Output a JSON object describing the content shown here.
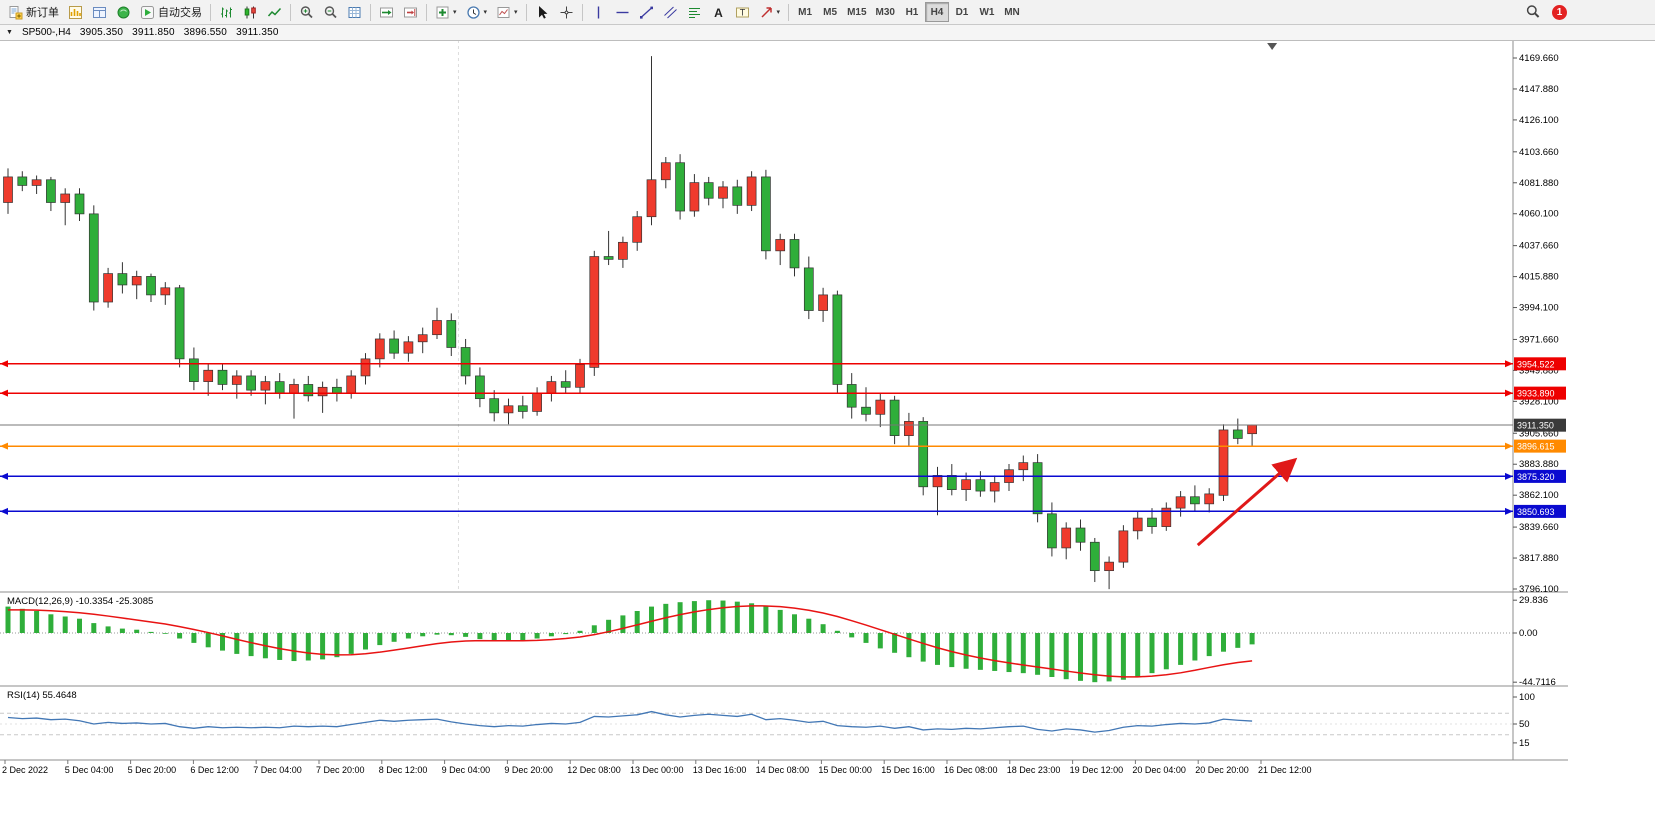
{
  "toolbar": {
    "new_order_label": "新订单",
    "auto_trading_label": "自动交易",
    "timeframes": [
      "M1",
      "M5",
      "M15",
      "M30",
      "H1",
      "H4",
      "D1",
      "W1",
      "MN"
    ],
    "active_timeframe": "H4",
    "notification_badge": "1"
  },
  "chart_header": {
    "collapse_icon": "▼",
    "symbol_period": "SP500-,H4",
    "open": "3905.350",
    "high": "3911.850",
    "low": "3896.550",
    "close": "3911.350"
  },
  "chart_data": {
    "type": "candlestick",
    "symbol": "SP500-",
    "period": "H4",
    "price_axis_ticks": [
      "4169.660",
      "4147.880",
      "4126.100",
      "4103.660",
      "4081.880",
      "4060.100",
      "4037.660",
      "4015.880",
      "3994.100",
      "3971.660",
      "3949.880",
      "3928.100",
      "3905.660",
      "3883.880",
      "3862.100",
      "3839.660",
      "3817.880",
      "3796.100"
    ],
    "x_axis_labels": [
      "2 Dec 2022",
      "5 Dec 04:00",
      "5 Dec 20:00",
      "6 Dec 12:00",
      "7 Dec 04:00",
      "7 Dec 20:00",
      "8 Dec 12:00",
      "9 Dec 04:00",
      "9 Dec 20:00",
      "12 Dec 08:00",
      "13 Dec 00:00",
      "13 Dec 16:00",
      "14 Dec 08:00",
      "15 Dec 00:00",
      "15 Dec 16:00",
      "16 Dec 08:00",
      "18 Dec 23:00",
      "19 Dec 12:00",
      "20 Dec 04:00",
      "20 Dec 20:00",
      "21 Dec 12:00"
    ],
    "candles_ohlc": [
      [
        4068,
        4092,
        4060,
        4086
      ],
      [
        4086,
        4090,
        4076,
        4080
      ],
      [
        4080,
        4087,
        4074,
        4084
      ],
      [
        4084,
        4086,
        4062,
        4068
      ],
      [
        4068,
        4078,
        4052,
        4074
      ],
      [
        4074,
        4078,
        4055,
        4060
      ],
      [
        4060,
        4066,
        3992,
        3998
      ],
      [
        3998,
        4022,
        3994,
        4018
      ],
      [
        4018,
        4026,
        4004,
        4010
      ],
      [
        4010,
        4020,
        4000,
        4016
      ],
      [
        4016,
        4018,
        3998,
        4003
      ],
      [
        4003,
        4012,
        3996,
        4008
      ],
      [
        4008,
        4010,
        3952,
        3958
      ],
      [
        3958,
        3966,
        3936,
        3942
      ],
      [
        3942,
        3955,
        3932,
        3950
      ],
      [
        3950,
        3954,
        3936,
        3940
      ],
      [
        3940,
        3950,
        3930,
        3946
      ],
      [
        3946,
        3950,
        3932,
        3936
      ],
      [
        3936,
        3946,
        3926,
        3942
      ],
      [
        3942,
        3948,
        3930,
        3934
      ],
      [
        3934,
        3944,
        3916,
        3940
      ],
      [
        3940,
        3946,
        3928,
        3932
      ],
      [
        3932,
        3942,
        3920,
        3938
      ],
      [
        3938,
        3944,
        3928,
        3934
      ],
      [
        3934,
        3950,
        3930,
        3946
      ],
      [
        3946,
        3962,
        3940,
        3958
      ],
      [
        3958,
        3976,
        3952,
        3972
      ],
      [
        3972,
        3978,
        3958,
        3962
      ],
      [
        3962,
        3974,
        3956,
        3970
      ],
      [
        3970,
        3980,
        3962,
        3975
      ],
      [
        3975,
        3994,
        3972,
        3985
      ],
      [
        3985,
        3990,
        3960,
        3966
      ],
      [
        3966,
        3972,
        3940,
        3946
      ],
      [
        3946,
        3952,
        3924,
        3930
      ],
      [
        3930,
        3936,
        3914,
        3920
      ],
      [
        3920,
        3930,
        3912,
        3925
      ],
      [
        3925,
        3932,
        3916,
        3921
      ],
      [
        3921,
        3938,
        3918,
        3934
      ],
      [
        3934,
        3946,
        3928,
        3942
      ],
      [
        3942,
        3950,
        3934,
        3938
      ],
      [
        3938,
        3958,
        3934,
        3954
      ],
      [
        3952,
        4034,
        3946,
        4030
      ],
      [
        4030,
        4048,
        4024,
        4028
      ],
      [
        4028,
        4044,
        4022,
        4040
      ],
      [
        4040,
        4062,
        4034,
        4058
      ],
      [
        4058,
        4171,
        4052,
        4084
      ],
      [
        4084,
        4100,
        4078,
        4096
      ],
      [
        4096,
        4102,
        4056,
        4062
      ],
      [
        4062,
        4088,
        4058,
        4082
      ],
      [
        4082,
        4086,
        4066,
        4071
      ],
      [
        4071,
        4083,
        4064,
        4079
      ],
      [
        4079,
        4084,
        4060,
        4066
      ],
      [
        4066,
        4090,
        4062,
        4086
      ],
      [
        4086,
        4091,
        4028,
        4034
      ],
      [
        4034,
        4046,
        4024,
        4042
      ],
      [
        4042,
        4046,
        4016,
        4022
      ],
      [
        4022,
        4030,
        3986,
        3992
      ],
      [
        3992,
        4008,
        3984,
        4003
      ],
      [
        4003,
        4006,
        3934,
        3940
      ],
      [
        3940,
        3948,
        3916,
        3924
      ],
      [
        3924,
        3938,
        3914,
        3919
      ],
      [
        3919,
        3934,
        3910,
        3929
      ],
      [
        3929,
        3932,
        3898,
        3904
      ],
      [
        3904,
        3920,
        3896,
        3914
      ],
      [
        3914,
        3917,
        3862,
        3868
      ],
      [
        3868,
        3882,
        3848,
        3876
      ],
      [
        3876,
        3884,
        3862,
        3866
      ],
      [
        3866,
        3878,
        3858,
        3873
      ],
      [
        3873,
        3879,
        3861,
        3865
      ],
      [
        3865,
        3876,
        3857,
        3871
      ],
      [
        3871,
        3884,
        3865,
        3880
      ],
      [
        3880,
        3890,
        3872,
        3885
      ],
      [
        3885,
        3891,
        3843,
        3849
      ],
      [
        3849,
        3857,
        3819,
        3825
      ],
      [
        3825,
        3843,
        3817,
        3839
      ],
      [
        3839,
        3845,
        3823,
        3829
      ],
      [
        3829,
        3832,
        3801,
        3809
      ],
      [
        3809,
        3819,
        3796,
        3815
      ],
      [
        3815,
        3841,
        3811,
        3837
      ],
      [
        3837,
        3851,
        3831,
        3846
      ],
      [
        3846,
        3853,
        3835,
        3840
      ],
      [
        3840,
        3857,
        3837,
        3853
      ],
      [
        3853,
        3865,
        3847,
        3861
      ],
      [
        3861,
        3869,
        3851,
        3856
      ],
      [
        3856,
        3867,
        3850,
        3863
      ],
      [
        3862,
        3912,
        3858,
        3908
      ],
      [
        3908,
        3916,
        3898,
        3902
      ],
      [
        3905.35,
        3911.85,
        3896.55,
        3911.35
      ]
    ],
    "horizontal_lines": [
      {
        "price": 3954.522,
        "label": "3954.522",
        "color": "#ee0000",
        "kind": "resistance"
      },
      {
        "price": 3933.89,
        "label": "3933.890",
        "color": "#ee0000",
        "kind": "resistance"
      },
      {
        "price": 3911.35,
        "label": "3911.350",
        "color": "#444444",
        "kind": "current-price"
      },
      {
        "price": 3896.615,
        "label": "3896.615",
        "color": "#ff8a00",
        "kind": "level"
      },
      {
        "price": 3875.32,
        "label": "3875.320",
        "color": "#0a0ad0",
        "kind": "support"
      },
      {
        "price": 3850.693,
        "label": "3850.693",
        "color": "#0a0ad0",
        "kind": "support"
      }
    ],
    "trend_arrow": {
      "from_bar": 83.2,
      "from_price": 3827,
      "to_bar": 90,
      "to_price": 3887,
      "color": "#e01818"
    },
    "vertical_separator_bar": 31.5,
    "chart_shift_marker_bar": 88.4,
    "macd": {
      "label": "MACD(12,26,9) -10.3354 -25.3085",
      "axis_ticks": [
        "29.836",
        "0.00",
        "-44.7116"
      ],
      "histogram_color": "#2fae3a",
      "signal_color": "#e81313",
      "histogram": [
        24,
        22,
        20,
        17,
        15,
        13,
        9,
        6,
        4,
        3,
        1,
        0,
        -5,
        -9,
        -13,
        -16,
        -19,
        -21,
        -23,
        -24.5,
        -25.5,
        -25,
        -24,
        -22,
        -19,
        -15,
        -11,
        -8,
        -5,
        -3,
        -1.5,
        -2,
        -3.5,
        -5.5,
        -7,
        -7.5,
        -6.5,
        -5,
        -3,
        -1,
        2,
        7,
        12,
        16,
        20,
        24,
        26.5,
        28,
        29,
        29.8,
        29.5,
        28.5,
        27,
        24.5,
        21,
        17,
        13,
        8,
        2,
        -4,
        -9,
        -14,
        -18,
        -22,
        -26,
        -29,
        -31,
        -32.5,
        -33.5,
        -34.5,
        -35.5,
        -36.5,
        -38,
        -40,
        -42,
        -43.5,
        -44.7,
        -44,
        -42.5,
        -40,
        -36.5,
        -33,
        -29,
        -25,
        -21,
        -17,
        -13.5,
        -10.34
      ],
      "signal": [
        21,
        21,
        20.8,
        20.2,
        19.4,
        18.4,
        17,
        15.4,
        13.6,
        11.8,
        10,
        8.2,
        5.8,
        3.2,
        0.4,
        -2.6,
        -5.8,
        -8.8,
        -11.6,
        -14.2,
        -16.4,
        -18.2,
        -19.4,
        -19.9,
        -19.8,
        -18.9,
        -17.4,
        -15.6,
        -13.6,
        -11.6,
        -9.7,
        -8.2,
        -7.3,
        -6.9,
        -7,
        -7.1,
        -7.1,
        -6.7,
        -6,
        -5,
        -3.6,
        -1.5,
        1.2,
        4.2,
        7.4,
        10.7,
        13.9,
        16.7,
        19.2,
        21.3,
        23,
        24.1,
        24.7,
        24.6,
        24,
        22.6,
        20.7,
        18.2,
        15,
        11.2,
        7.2,
        3,
        -1.2,
        -5.4,
        -9.5,
        -13.4,
        -16.9,
        -20,
        -22.7,
        -25.1,
        -27.2,
        -29.1,
        -30.9,
        -32.7,
        -34.6,
        -36.4,
        -38,
        -39.2,
        -39.9,
        -39.9,
        -39.2,
        -38,
        -36.2,
        -33.9,
        -31.3,
        -28.9,
        -26.8,
        -25.31
      ]
    },
    "rsi": {
      "label": "RSI(14) 55.4648",
      "axis_ticks": [
        "100",
        "50",
        "15"
      ],
      "levels": [
        70,
        30
      ],
      "line_color": "#4277b5",
      "values": [
        62,
        60,
        61,
        58,
        59,
        56,
        50,
        53,
        51,
        52,
        50,
        51,
        45,
        42,
        45,
        43,
        44,
        43,
        44,
        43,
        46,
        45,
        46,
        45,
        49,
        53,
        57,
        55,
        57,
        58,
        59,
        54,
        50,
        47,
        45,
        47,
        46,
        49,
        51,
        50,
        53,
        64,
        63,
        65,
        67,
        73,
        67,
        63,
        66,
        68,
        66,
        64,
        68,
        58,
        60,
        57,
        53,
        55,
        47,
        45,
        44,
        46,
        42,
        45,
        39,
        41,
        40,
        42,
        41,
        43,
        45,
        46,
        40,
        37,
        41,
        39,
        35,
        38,
        44,
        47,
        46,
        49,
        51,
        50,
        52,
        59,
        57,
        55.46
      ]
    },
    "colors": {
      "bull": "#ef3b2d",
      "bear": "#2fae3a",
      "wick": "#333333",
      "background": "#ffffff",
      "axis_text": "#000000"
    }
  }
}
